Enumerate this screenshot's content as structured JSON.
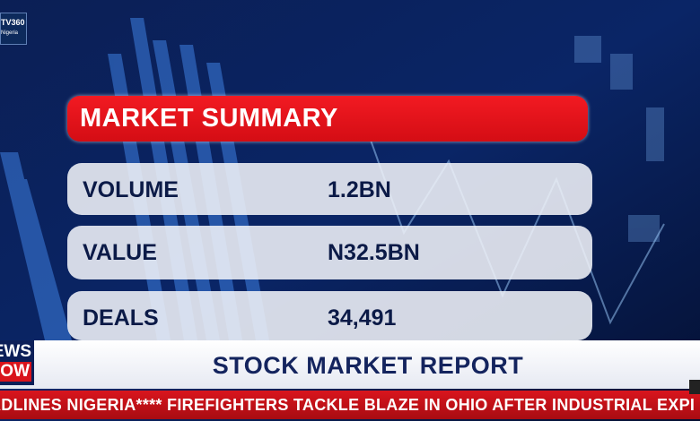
{
  "logo": {
    "title": "TV360",
    "subtitle": "Nigeria"
  },
  "panel": {
    "title": "MARKET SUMMARY",
    "rows": [
      [
        "VOLUME",
        "1.2BN"
      ],
      [
        "VALUE",
        "N32.5BN"
      ],
      [
        "DEALS",
        "34,491"
      ]
    ]
  },
  "badge": [
    "NEWS",
    "NOW"
  ],
  "banner": {
    "title": "STOCK MARKET REPORT"
  },
  "ticker": {
    "text": "ADLINES NIGERIA**** FIREFIGHTERS TACKLE BLAZE IN OHIO AFTER INDUSTRIAL EXPI"
  }
}
